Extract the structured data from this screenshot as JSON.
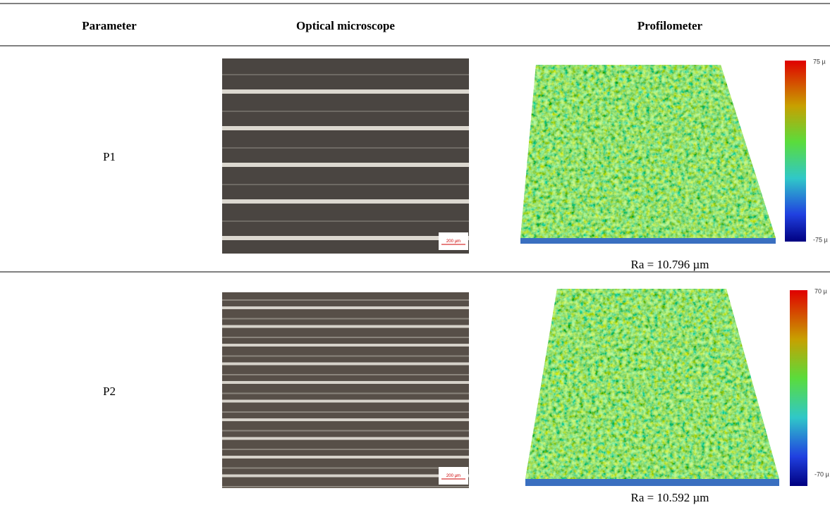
{
  "table": {
    "header": [
      "Parameter",
      "Optical microscope",
      "Profilometer"
    ],
    "rows": [
      {
        "parameter": "P1",
        "scale_bar": "200 µm",
        "colorbar_max": "75 µ",
        "colorbar_min": "-75 µ",
        "roughness": "Ra = 10.796 µm"
      },
      {
        "parameter": "P2",
        "scale_bar": "200 µm",
        "colorbar_max": "70 µ",
        "colorbar_min": "-70 µ",
        "roughness": "Ra = 10.592 µm"
      }
    ]
  }
}
